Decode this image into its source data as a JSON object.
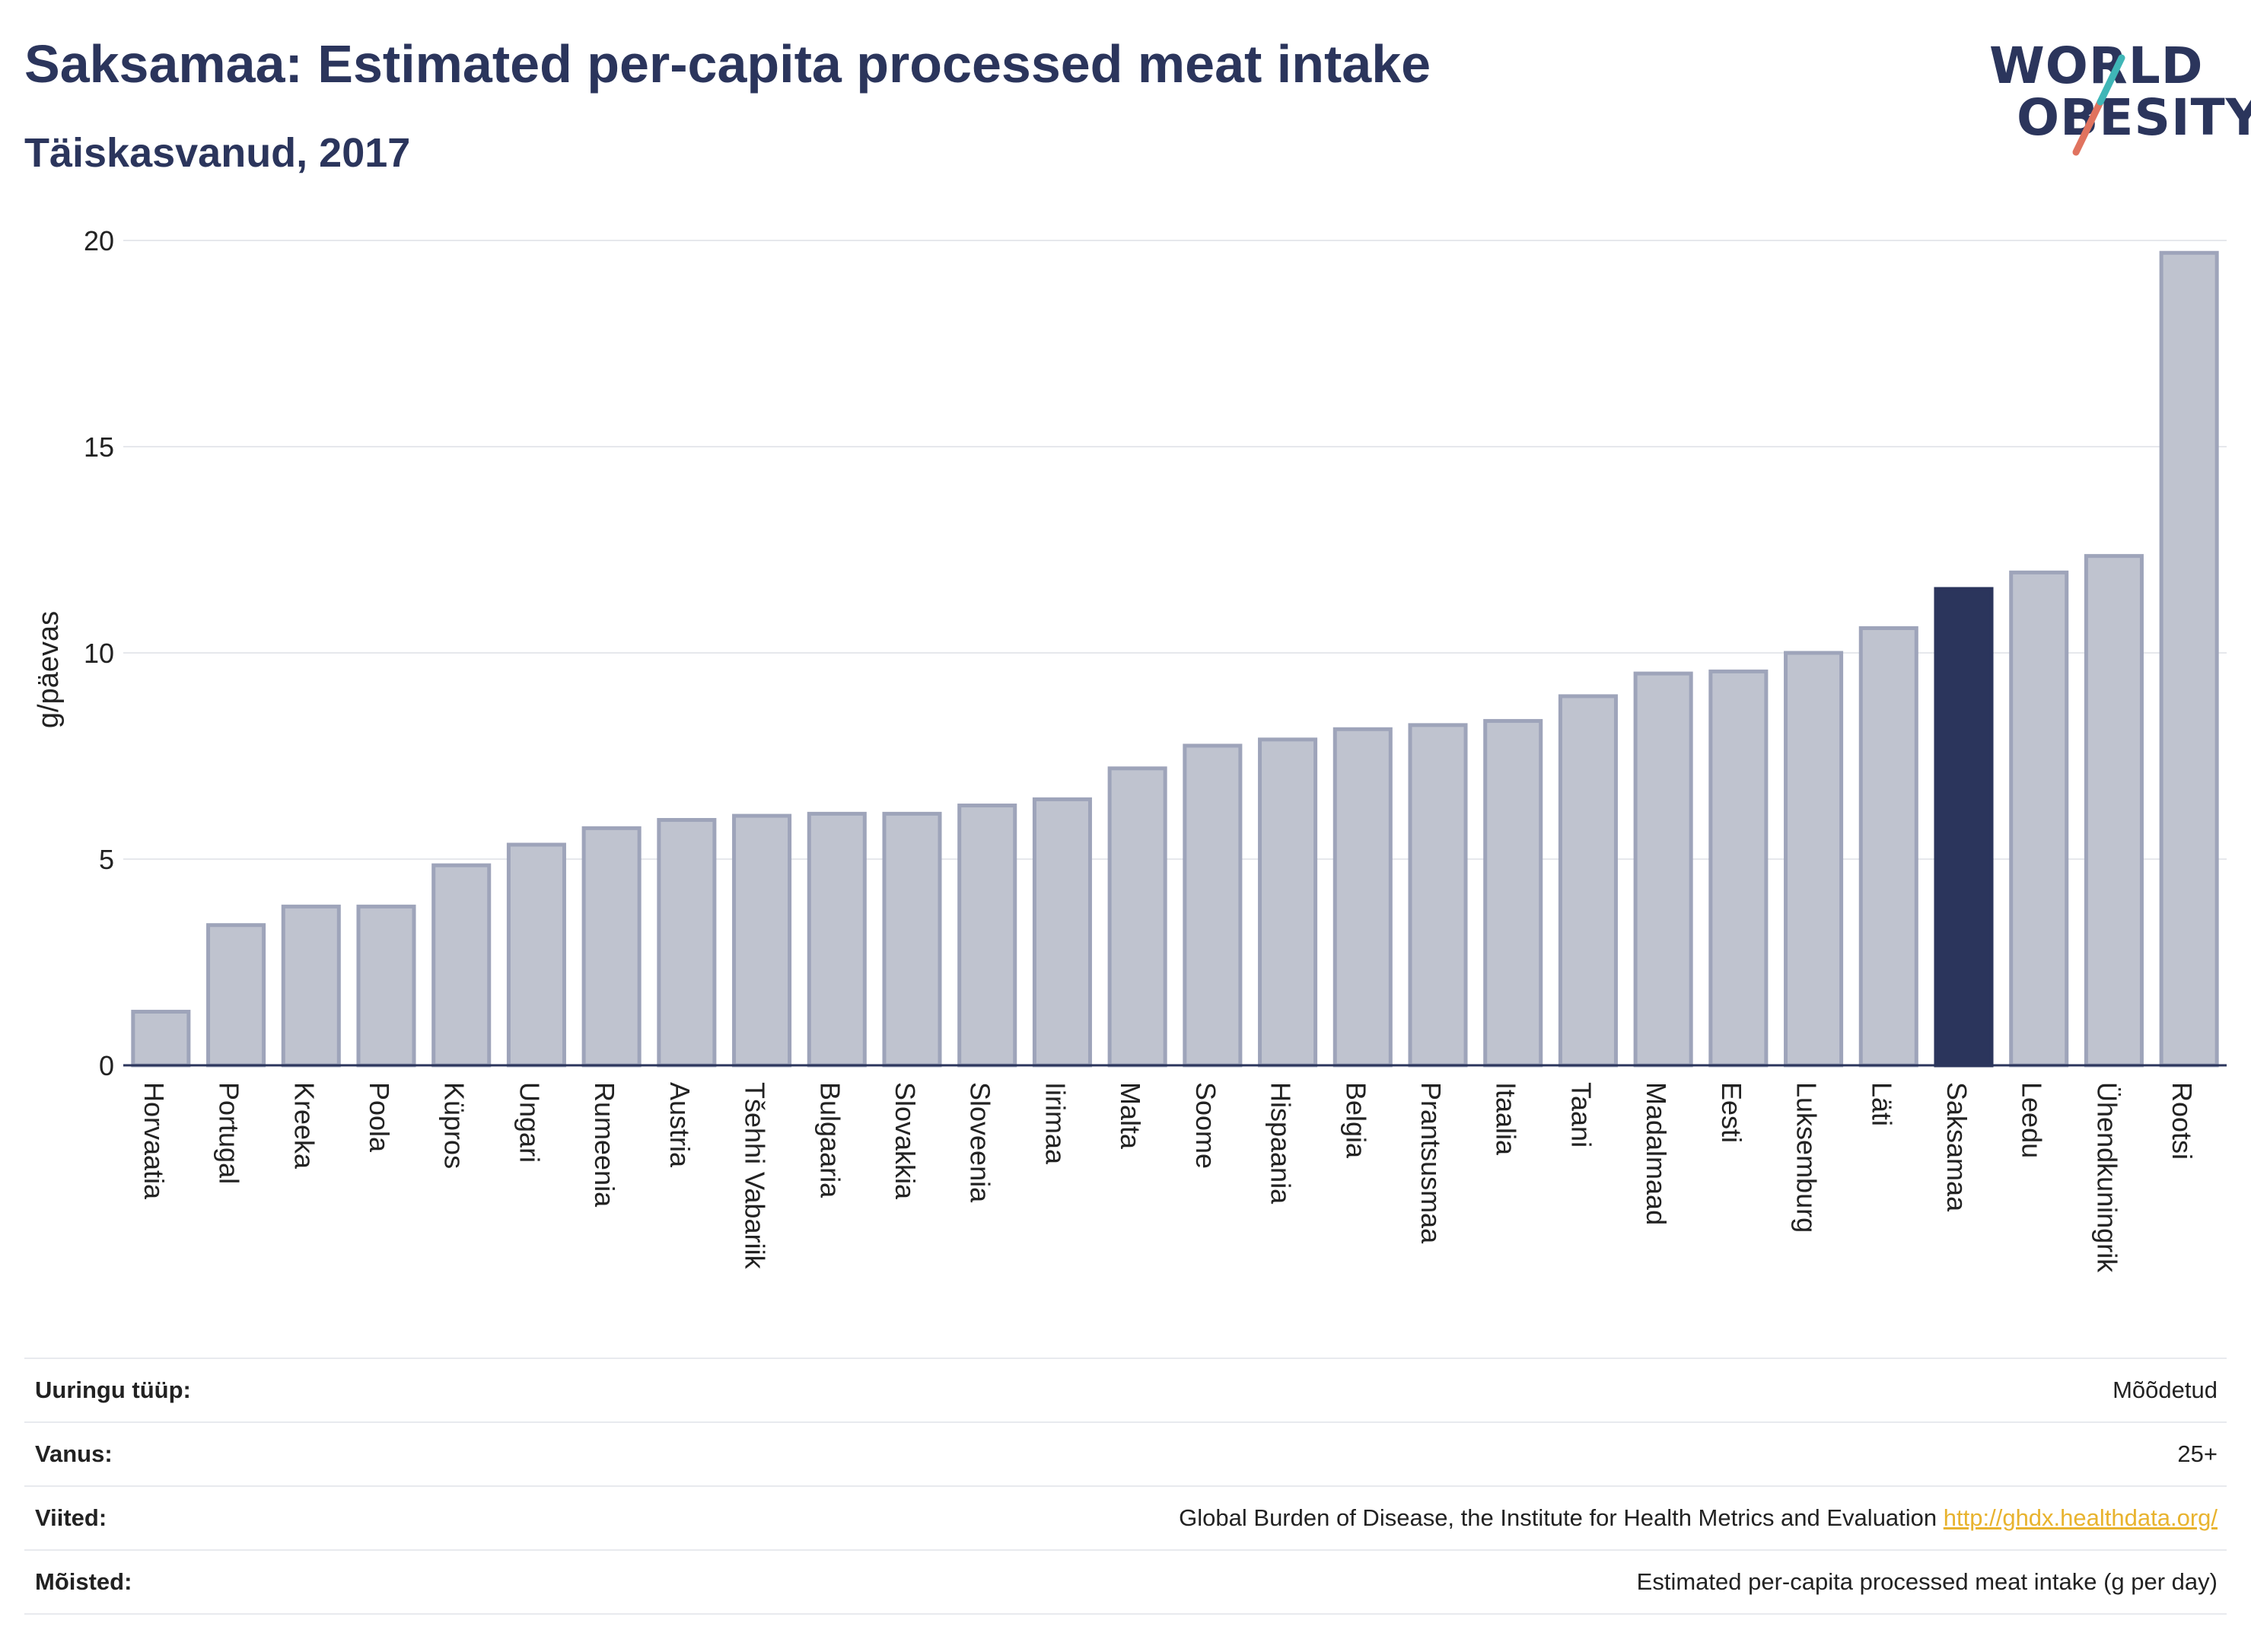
{
  "header": {
    "title": "Saksamaa: Estimated per-capita processed meat intake",
    "subtitle": "Täiskasvanud, 2017"
  },
  "logo": {
    "line1": "WORLD",
    "line2": "OBESITY"
  },
  "chart_data": {
    "type": "bar",
    "ylabel": "g/päevas",
    "ylim": [
      0,
      20
    ],
    "yticks": [
      0,
      5,
      10,
      15,
      20
    ],
    "grid": true,
    "highlight": "Saksamaa",
    "colors": {
      "bar": "#bfc3cf",
      "bar_border": "#9ea4ba",
      "highlight": "#2b355c",
      "grid": "#e6e8ec",
      "axis": "#2b355c"
    },
    "categories": [
      "Horvaatia",
      "Portugal",
      "Kreeka",
      "Poola",
      "Küpros",
      "Ungari",
      "Rumeenia",
      "Austria",
      "Tšehhi Vabariik",
      "Bulgaaria",
      "Slovakkia",
      "Sloveenia",
      "Iirimaa",
      "Malta",
      "Soome",
      "Hispaania",
      "Belgia",
      "Prantsusmaa",
      "Itaalia",
      "Taani",
      "Madalmaad",
      "Eesti",
      "Luksemburg",
      "Läti",
      "Saksamaa",
      "Leedu",
      "Ühendkuningrik",
      "Rootsi"
    ],
    "values": [
      1.3,
      3.4,
      3.85,
      3.85,
      4.85,
      5.35,
      5.75,
      5.95,
      6.05,
      6.1,
      6.1,
      6.3,
      6.45,
      7.2,
      7.75,
      7.9,
      8.15,
      8.25,
      8.35,
      8.95,
      9.5,
      9.55,
      10.0,
      10.6,
      11.55,
      11.95,
      12.35,
      19.7
    ]
  },
  "info": {
    "survey_label": "Uuringu tüüp:",
    "survey_value": "Mõõdetud",
    "age_label": "Vanus:",
    "age_value": "25+",
    "refs_label": "Viited:",
    "refs_text": "Global Burden of Disease, the Institute for Health Metrics and Evaluation",
    "refs_link": "http://ghdx.healthdata.org/",
    "defs_label": "Mõisted:",
    "defs_value": "Estimated per-capita processed meat intake (g per day)"
  }
}
